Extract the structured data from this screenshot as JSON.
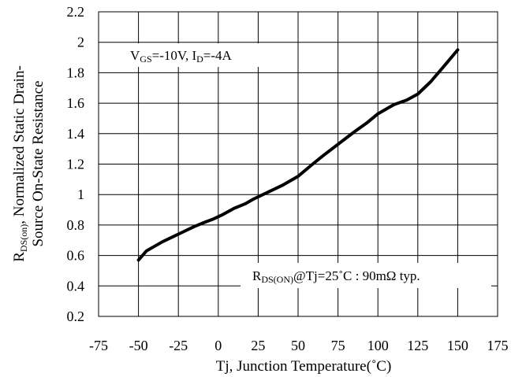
{
  "chart_data": {
    "type": "line",
    "xlabel": "Tj, Junction Temperature(˚C)",
    "ylabel": {
      "line1": {
        "main": "R",
        "sub": "DS(on)",
        "rest": ", Normalized Static Drain-"
      },
      "line2": "Source On-State Resistance"
    },
    "xlim": [
      -75,
      175
    ],
    "ylim": [
      0.2,
      2.2
    ],
    "x_ticks": [
      "-75",
      "-50",
      "-25",
      "0",
      "25",
      "50",
      "75",
      "100",
      "125",
      "150",
      "175"
    ],
    "y_ticks": [
      "0.2",
      "0.4",
      "0.6",
      "0.8",
      "1",
      "1.2",
      "1.4",
      "1.6",
      "1.8",
      "2",
      "2.2"
    ],
    "grid": true,
    "annotations": {
      "conditions": {
        "v": "V",
        "vsub": "GS",
        "vrest": "=-10V, I",
        "isub": "D",
        "irest": "=-4A"
      },
      "typical": {
        "r": "R",
        "rsub": "DS(ON)",
        "rest": "@Tj=25˚C : 90mΩ  typ."
      }
    },
    "series": [
      {
        "x": [
          -50,
          -45,
          -35,
          -25,
          -15,
          -8,
          -3,
          3,
          10,
          17,
          22,
          28,
          40,
          50,
          58,
          65,
          75,
          85,
          93,
          100,
          110,
          118,
          125,
          133,
          142,
          150
        ],
        "y": [
          0.57,
          0.63,
          0.69,
          0.74,
          0.79,
          0.82,
          0.84,
          0.87,
          0.91,
          0.94,
          0.97,
          1.0,
          1.06,
          1.12,
          1.19,
          1.25,
          1.33,
          1.41,
          1.47,
          1.53,
          1.59,
          1.62,
          1.66,
          1.74,
          1.85,
          1.95
        ]
      }
    ]
  }
}
